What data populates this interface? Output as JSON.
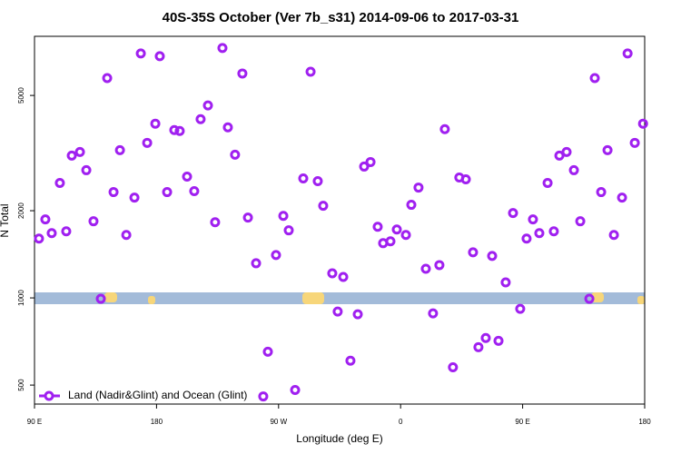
{
  "chart_data": {
    "type": "scatter",
    "title": "40S-35S October (Ver 7b_s31)   2014-09-06 to 2017-03-31",
    "x_label": "Longitude (deg E)",
    "y_label": "N Total",
    "xlim": [
      90,
      540
    ],
    "ylim": [
      430,
      8000
    ],
    "log_y": true,
    "legend": "bottom left",
    "xticks": [
      {
        "value": 90,
        "label": "90 E"
      },
      {
        "value": 180,
        "label": "180"
      },
      {
        "value": 270,
        "label": "90 W"
      },
      {
        "value": 360,
        "label": "0"
      },
      {
        "value": 450,
        "label": "90 E"
      },
      {
        "value": 540,
        "label": "180"
      }
    ],
    "yticks": [
      500,
      1000,
      2000,
      5000
    ],
    "series": [
      {
        "name": "Land (Nadir&Glint) and Ocean (Glint)",
        "color": "#a020f0",
        "x": [
          93.3,
          98.0,
          102.7,
          108.7,
          113.4,
          117.5,
          123.5,
          128.2,
          133.5,
          138.9,
          143.6,
          148.3,
          153.0,
          157.7,
          163.7,
          168.4,
          173.1,
          179.1,
          182.4,
          187.8,
          193.1,
          197.1,
          202.5,
          207.8,
          212.5,
          217.9,
          223.2,
          228.6,
          232.6,
          237.9,
          243.3,
          247.4,
          253.4,
          258.7,
          262.1,
          268.1,
          273.5,
          277.5,
          282.2,
          288.2,
          293.6,
          298.9,
          302.9,
          309.6,
          313.6,
          317.7,
          323.0,
          328.4,
          333.1,
          337.8,
          343.1,
          347.1,
          352.5,
          357.2,
          363.9,
          367.9,
          373.2,
          378.6,
          383.9,
          388.6,
          392.6,
          398.6,
          403.3,
          408.1,
          413.4,
          417.4,
          422.8,
          432.2,
          427.5,
          437.5,
          442.9,
          448.2,
          452.9,
          457.6,
          462.3,
          468.4,
          473.0,
          477.1,
          482.4,
          487.8,
          492.5,
          499.2,
          503.2,
          507.9,
          512.6,
          517.3,
          523.3,
          527.4,
          532.7,
          538.8
        ],
        "values": [
          1602,
          1866,
          1673,
          2493,
          1698,
          3099,
          3190,
          2760,
          1839,
          993,
          5740,
          2319,
          3236,
          1649,
          2220,
          6981,
          3430,
          3995,
          6830,
          2319,
          3797,
          3770,
          2623,
          2336,
          4141,
          4617,
          1825,
          7291,
          3881,
          3121,
          5953,
          1893,
          1317,
          457,
          652,
          1406,
          1920,
          1711,
          481,
          2585,
          6039,
          2529,
          2080,
          1216,
          897,
          1181,
          607,
          878,
          2841,
          2945,
          1760,
          1545,
          1568,
          1722,
          1649,
          2096,
          2404,
          1261,
          884,
          1298,
          3824,
          576,
          2604,
          2567,
          1437,
          676,
          727,
          711,
          1396,
          1131,
          1963,
          917,
          1602,
          1866,
          1673,
          2493,
          1698,
          3099,
          3190,
          2760,
          1839,
          993,
          5740,
          2319,
          3236,
          1649,
          2220,
          6981,
          3430,
          3995
        ]
      }
    ]
  }
}
